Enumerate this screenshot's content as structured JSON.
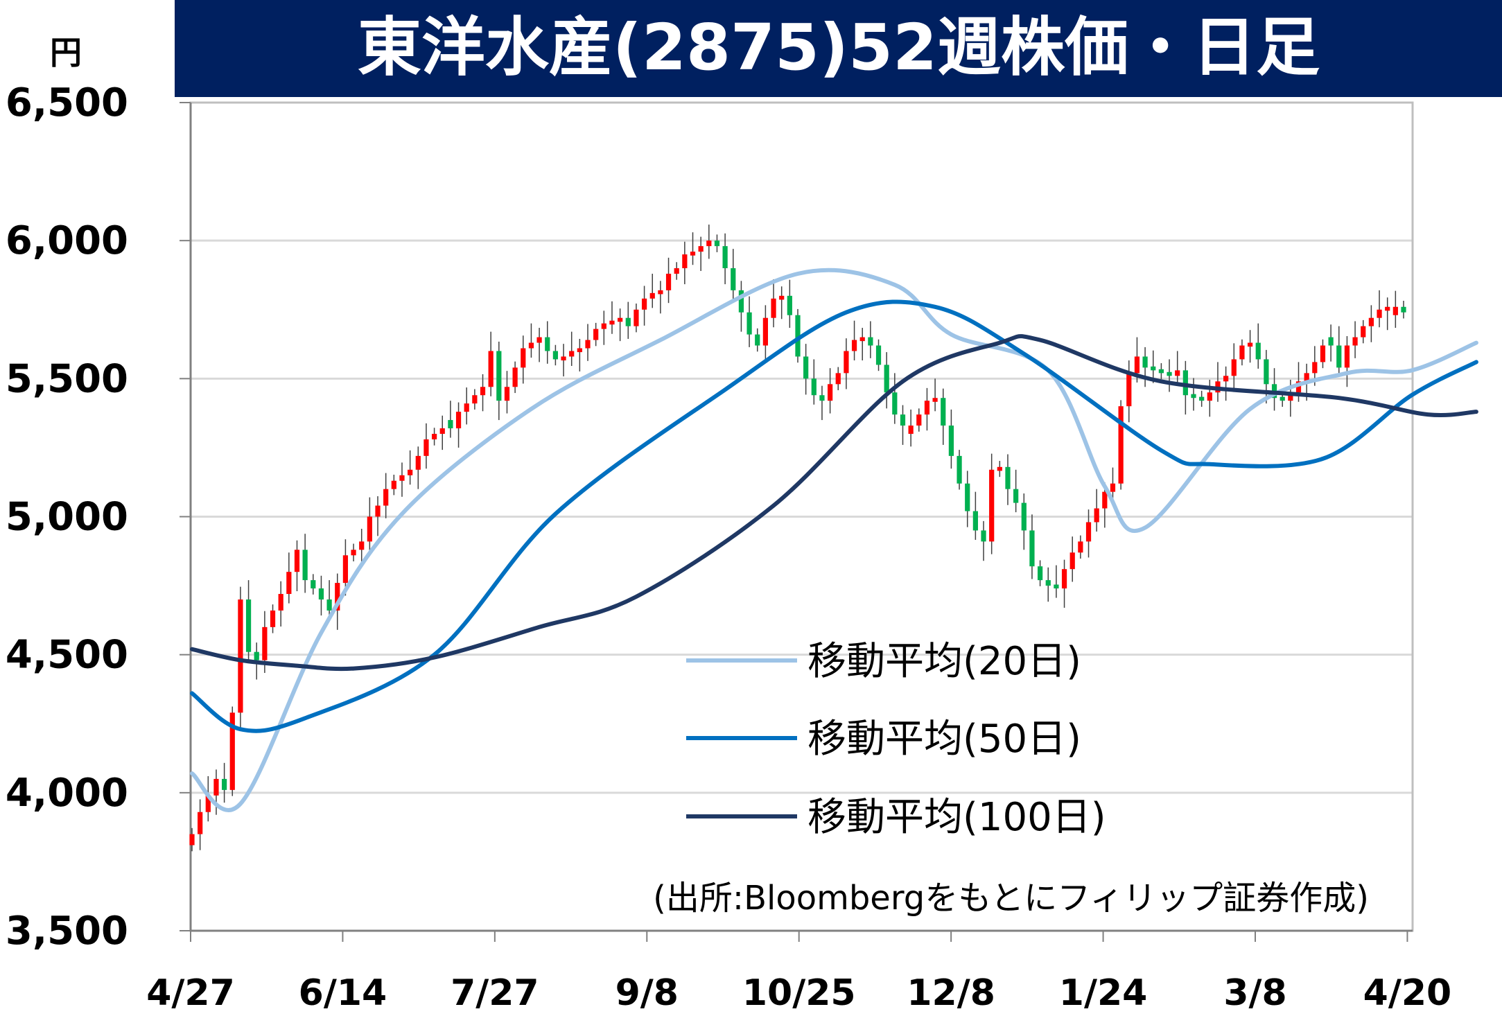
{
  "chart_data": {
    "type": "candlestick",
    "title": "東洋水産(2875)52週株価・日足",
    "unit_label": "円",
    "source_note": "(出所:Bloombergをもとにフィリップ証券作成)",
    "y_range": [
      3500,
      6500
    ],
    "y_ticks": [
      "3,500",
      "4,000",
      "4,500",
      "5,000",
      "5,500",
      "6,000",
      "6,500"
    ],
    "y_tick_values": [
      3500,
      4000,
      4500,
      5000,
      5500,
      6000,
      6500
    ],
    "x_ticks": [
      "4/27",
      "6/14",
      "7/27",
      "9/8",
      "10/25",
      "12/8",
      "1/24",
      "3/8",
      "4/20"
    ],
    "grid": true,
    "legend_position": "center-right",
    "colors": {
      "up": "#ff0000",
      "down": "#00b050",
      "ma20": "#9dc3e6",
      "ma50": "#0070c0",
      "ma100": "#1f3864",
      "title_bg": "#002060"
    },
    "close_approx": [
      3850,
      3930,
      3990,
      4050,
      4010,
      4290,
      4700,
      4510,
      4480,
      4600,
      4660,
      4720,
      4800,
      4880,
      4770,
      4740,
      4700,
      4660,
      4760,
      4860,
      4880,
      4910,
      5000,
      5040,
      5100,
      5130,
      5150,
      5170,
      5220,
      5280,
      5300,
      5320,
      5320,
      5380,
      5410,
      5440,
      5470,
      5600,
      5420,
      5470,
      5540,
      5610,
      5630,
      5650,
      5600,
      5570,
      5580,
      5600,
      5610,
      5640,
      5680,
      5700,
      5710,
      5720,
      5690,
      5750,
      5790,
      5810,
      5820,
      5880,
      5900,
      5950,
      5960,
      5980,
      6000,
      5980,
      5900,
      5820,
      5740,
      5660,
      5620,
      5720,
      5790,
      5800,
      5730,
      5580,
      5500,
      5440,
      5420,
      5480,
      5520,
      5600,
      5640,
      5650,
      5620,
      5550,
      5450,
      5370,
      5330,
      5330,
      5370,
      5420,
      5430,
      5330,
      5220,
      5120,
      5020,
      4950,
      4910,
      5170,
      5180,
      5100,
      5050,
      4950,
      4820,
      4770,
      4750,
      4740,
      4810,
      4870,
      4910,
      4980,
      5030,
      5090,
      5120,
      5400,
      5520,
      5580,
      5540,
      5530,
      5520,
      5510,
      5530,
      5440,
      5430,
      5420,
      5450,
      5490,
      5510,
      5570,
      5620,
      5630,
      5570,
      5480,
      5430,
      5420,
      5450,
      5490,
      5520,
      5560,
      5620,
      5620,
      5540,
      5620,
      5650,
      5690,
      5720,
      5750,
      5760,
      5760,
      5740
    ],
    "series": [
      {
        "name": "移動平均(20日)",
        "x": [
          0,
          6,
          16,
          26,
          42,
          58,
          75,
          87,
          94,
          106,
          113,
          118,
          131,
          143,
          151,
          159
        ],
        "values": [
          4070,
          3960,
          4580,
          5010,
          5390,
          5640,
          5880,
          5840,
          5660,
          5530,
          5110,
          4960,
          5390,
          5520,
          5530,
          5630
        ]
      },
      {
        "name": "移動平均(50日)",
        "x": [
          0,
          6,
          14,
          30,
          45,
          66,
          81,
          92,
          103,
          120,
          126,
          140,
          151,
          159
        ],
        "values": [
          4360,
          4230,
          4270,
          4500,
          5010,
          5460,
          5740,
          5760,
          5590,
          5240,
          5190,
          5210,
          5440,
          5560
        ]
      },
      {
        "name": "移動平均(100日)",
        "x": [
          0,
          6,
          13,
          20,
          30,
          43,
          55,
          72,
          88,
          100,
          105,
          120,
          142,
          153,
          159
        ],
        "values": [
          4520,
          4480,
          4460,
          4450,
          4490,
          4600,
          4710,
          5040,
          5490,
          5630,
          5640,
          5490,
          5430,
          5370,
          5380
        ]
      }
    ]
  }
}
